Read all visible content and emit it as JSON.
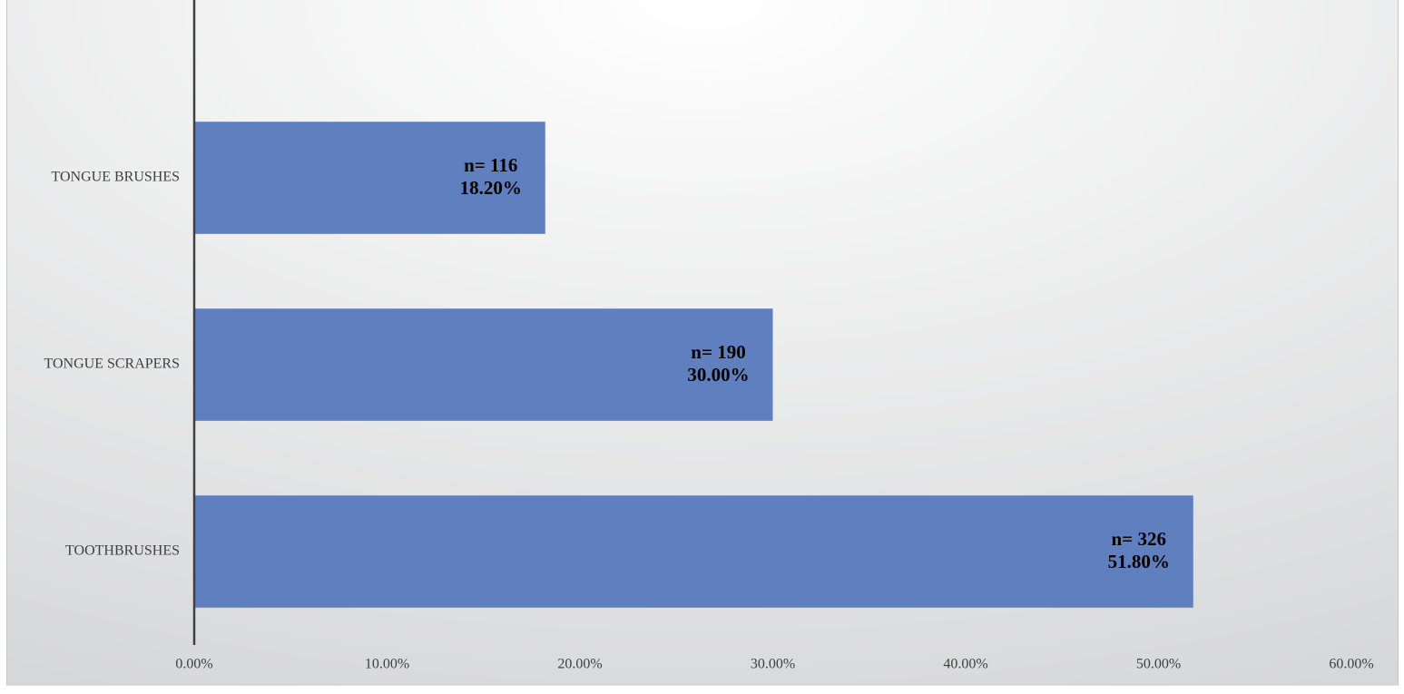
{
  "chart_data": {
    "type": "hbar",
    "categories": [
      "TONGUE BRUSHES",
      "TONGUE SCRAPERS",
      "TOOTHBRUSHES"
    ],
    "values": [
      18.2,
      30,
      51.8
    ],
    "value_labels": [
      "18.20%",
      "30.00%",
      "51.80%"
    ],
    "count_labels": [
      "n= 116",
      "n= 190",
      "n= 326"
    ],
    "color": "#5f7fbf",
    "xlim": [
      0,
      60
    ],
    "xticks": [
      {
        "value": 0,
        "label": "0.00%"
      },
      {
        "value": 10,
        "label": "10.00%"
      },
      {
        "value": 20,
        "label": "20.00%"
      },
      {
        "value": 30,
        "label": "30.00%"
      },
      {
        "value": 40,
        "label": "40.00%"
      },
      {
        "value": 50,
        "label": "50.00%"
      },
      {
        "value": 60,
        "label": "60.00%"
      }
    ],
    "grid": false
  }
}
